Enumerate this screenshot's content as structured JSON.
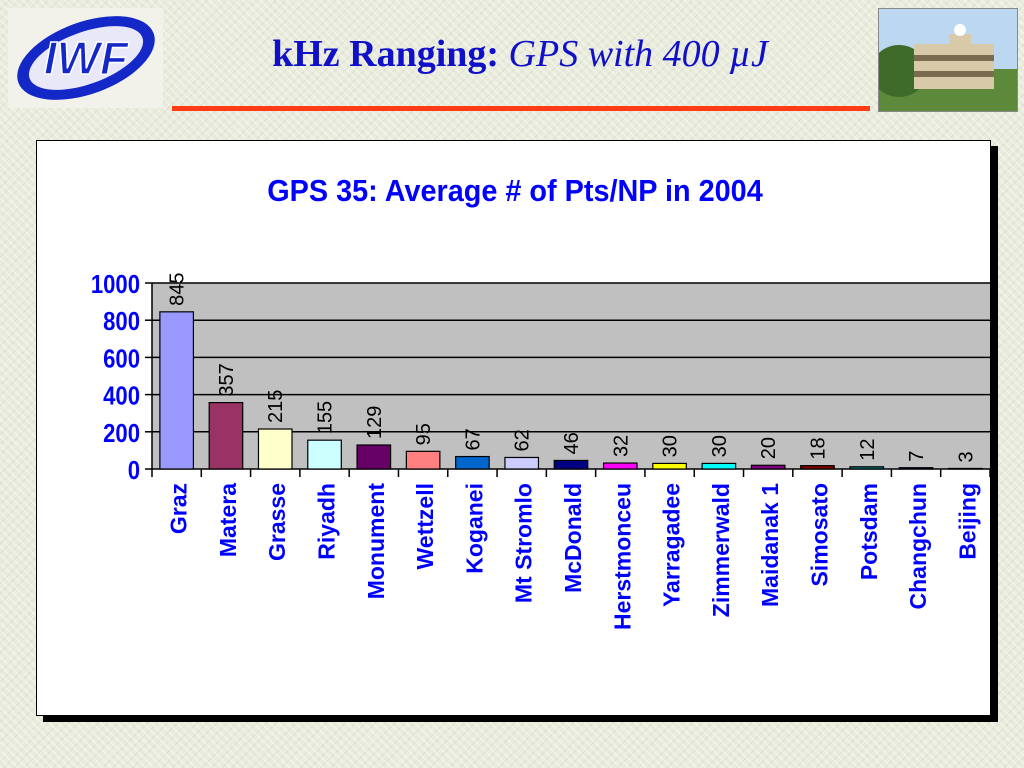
{
  "slide": {
    "title_bold": "kHz Ranging:",
    "title_italic": "GPS with 400 µJ",
    "logo_text": "IWF",
    "photo_icon": "building-photo"
  },
  "colors": {
    "title": "#1010c8",
    "rule": "#ff3c14",
    "plot_bg": "#c0c0c0",
    "label_blue": "#0000ff"
  },
  "chart_data": {
    "type": "bar",
    "title": "GPS 35: Average # of Pts/NP in 2004",
    "xlabel": "",
    "ylabel": "",
    "ylim": [
      0,
      1000
    ],
    "yticks": [
      0,
      200,
      400,
      600,
      800,
      1000
    ],
    "grid": true,
    "categories": [
      "Graz",
      "Matera",
      "Grasse",
      "Riyadh",
      "Monument",
      "Wettzell",
      "Koganei",
      "Mt Stromlo",
      "McDonald",
      "Herstmonceu",
      "Yarragadee",
      "Zimmerwald",
      "Maidanak 1",
      "Simosato",
      "Potsdam",
      "Changchun",
      "Beijing"
    ],
    "values": [
      845,
      357,
      215,
      155,
      129,
      95,
      67,
      62,
      46,
      32,
      30,
      30,
      20,
      18,
      12,
      7,
      3
    ],
    "bar_colors": [
      "#9999ff",
      "#993366",
      "#ffffcc",
      "#ccffff",
      "#660066",
      "#ff8080",
      "#0066cc",
      "#ccccff",
      "#000080",
      "#ff00ff",
      "#ffff00",
      "#00ffff",
      "#800080",
      "#800000",
      "#008080",
      "#0000ff",
      "#00ccff"
    ]
  }
}
